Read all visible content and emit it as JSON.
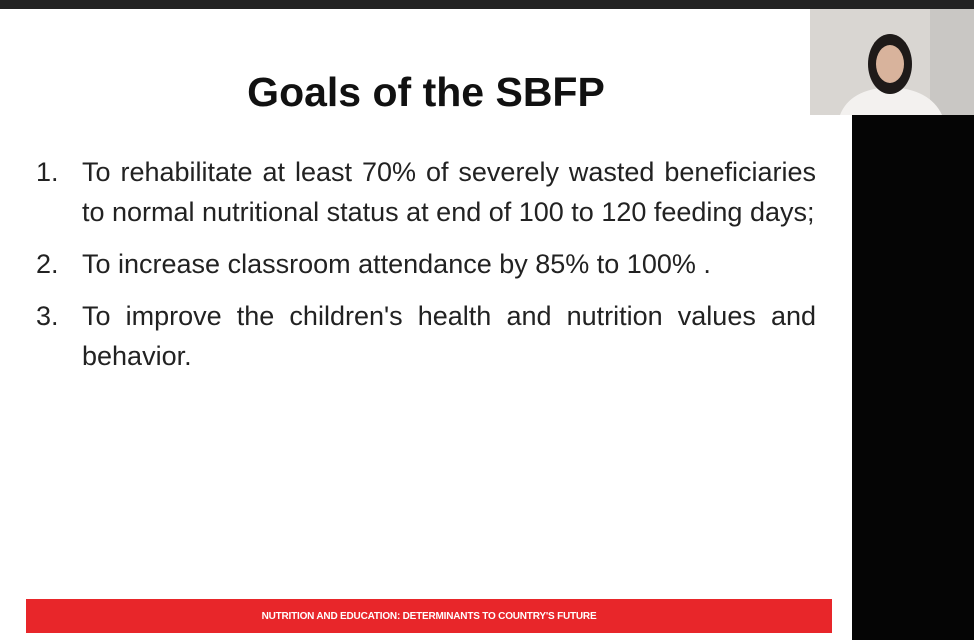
{
  "slide": {
    "title": "Goals of the SBFP",
    "items": [
      {
        "number": "1.",
        "text": "To rehabilitate at least 70% of severely wasted beneficiaries to normal nutritional status at end of 100 to 120 feeding days;"
      },
      {
        "number": "2.",
        "text": "To increase classroom attendance by 85% to 100% ."
      },
      {
        "number": "3.",
        "text": "To improve the children's health and nutrition values and behavior."
      }
    ],
    "footer": "NUTRITION AND EDUCATION: DETERMINANTS TO COUNTRY'S FUTURE"
  }
}
